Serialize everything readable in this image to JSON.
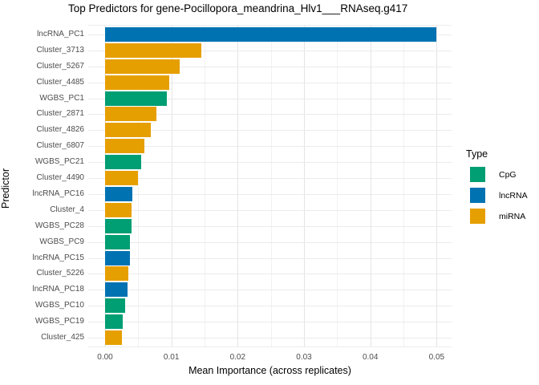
{
  "title": "Top Predictors for gene-Pocillopora_meandrina_Hlv1___RNAseq.g417",
  "chart_data": {
    "type": "bar",
    "orientation": "horizontal",
    "title": "Top Predictors for gene-Pocillopora_meandrina_Hlv1___RNAseq.g417",
    "xlabel": "Mean Importance (across replicates)",
    "ylabel": "Predictor",
    "xlim": [
      0,
      0.0525
    ],
    "x_ticks": [
      0,
      0.01,
      0.02,
      0.03,
      0.04,
      0.05
    ],
    "x_tick_labels": [
      "0.00",
      "0.01",
      "0.02",
      "0.03",
      "0.04",
      "0.05"
    ],
    "x_minor_ticks": [
      0.005,
      0.015,
      0.025,
      0.035,
      0.045
    ],
    "grid": true,
    "legend_position": "right",
    "categories": [
      "lncRNA_PC1",
      "Cluster_3713",
      "Cluster_5267",
      "Cluster_4485",
      "WGBS_PC1",
      "Cluster_2871",
      "Cluster_4826",
      "Cluster_6807",
      "WGBS_PC21",
      "Cluster_4490",
      "lncRNA_PC16",
      "Cluster_4",
      "WGBS_PC28",
      "WGBS_PC9",
      "lncRNA_PC15",
      "Cluster_5226",
      "lncRNA_PC18",
      "WGBS_PC10",
      "WGBS_PC19",
      "Cluster_425"
    ],
    "values": [
      0.0499,
      0.0145,
      0.0113,
      0.0097,
      0.0093,
      0.0077,
      0.0069,
      0.0059,
      0.0054,
      0.0049,
      0.0041,
      0.004,
      0.004,
      0.0038,
      0.0038,
      0.0035,
      0.0034,
      0.003,
      0.0027,
      0.0026
    ],
    "bar_types": [
      "lncRNA",
      "miRNA",
      "miRNA",
      "miRNA",
      "CpG",
      "miRNA",
      "miRNA",
      "miRNA",
      "CpG",
      "miRNA",
      "lncRNA",
      "miRNA",
      "CpG",
      "CpG",
      "lncRNA",
      "miRNA",
      "lncRNA",
      "CpG",
      "CpG",
      "miRNA"
    ],
    "type_colors": {
      "CpG": "#009E73",
      "lncRNA": "#0072B2",
      "miRNA": "#E69F00"
    }
  },
  "legend": {
    "title": "Type",
    "entries": [
      {
        "label": "CpG",
        "color": "#009E73"
      },
      {
        "label": "lncRNA",
        "color": "#0072B2"
      },
      {
        "label": "miRNA",
        "color": "#E69F00"
      }
    ]
  }
}
